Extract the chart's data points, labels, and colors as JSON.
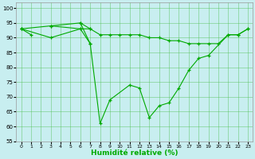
{
  "background_color": "#c8eef0",
  "grid_color": "#44bb44",
  "line_color": "#00aa00",
  "xlabel": "Humidité relative (%)",
  "xlim": [
    -0.5,
    23.5
  ],
  "ylim": [
    55,
    102
  ],
  "yticks": [
    55,
    60,
    65,
    70,
    75,
    80,
    85,
    90,
    95,
    100
  ],
  "xticks": [
    0,
    1,
    2,
    3,
    4,
    5,
    6,
    7,
    8,
    9,
    10,
    11,
    12,
    13,
    14,
    15,
    16,
    17,
    18,
    19,
    20,
    21,
    22,
    23
  ],
  "segments": [
    {
      "x": [
        0,
        1
      ],
      "y": [
        93,
        91
      ]
    },
    {
      "x": [
        0,
        3,
        6,
        7,
        8,
        9,
        11,
        12,
        13,
        14,
        15,
        16,
        17,
        18,
        19,
        21,
        22,
        23
      ],
      "y": [
        93,
        90,
        93,
        88,
        61,
        69,
        74,
        73,
        63,
        67,
        68,
        73,
        79,
        83,
        84,
        91,
        91,
        93
      ]
    },
    {
      "x": [
        0,
        3,
        6,
        7,
        8,
        9,
        10,
        11,
        12,
        13,
        14,
        15,
        16,
        17,
        18,
        19,
        20,
        21,
        22,
        23
      ],
      "y": [
        93,
        94,
        93,
        93,
        91,
        91,
        91,
        91,
        91,
        90,
        90,
        89,
        89,
        88,
        88,
        88,
        88,
        91,
        91,
        93
      ]
    },
    {
      "x": [
        3,
        6,
        7
      ],
      "y": [
        94,
        95,
        93
      ]
    },
    {
      "x": [
        6,
        7
      ],
      "y": [
        95,
        88
      ]
    }
  ]
}
